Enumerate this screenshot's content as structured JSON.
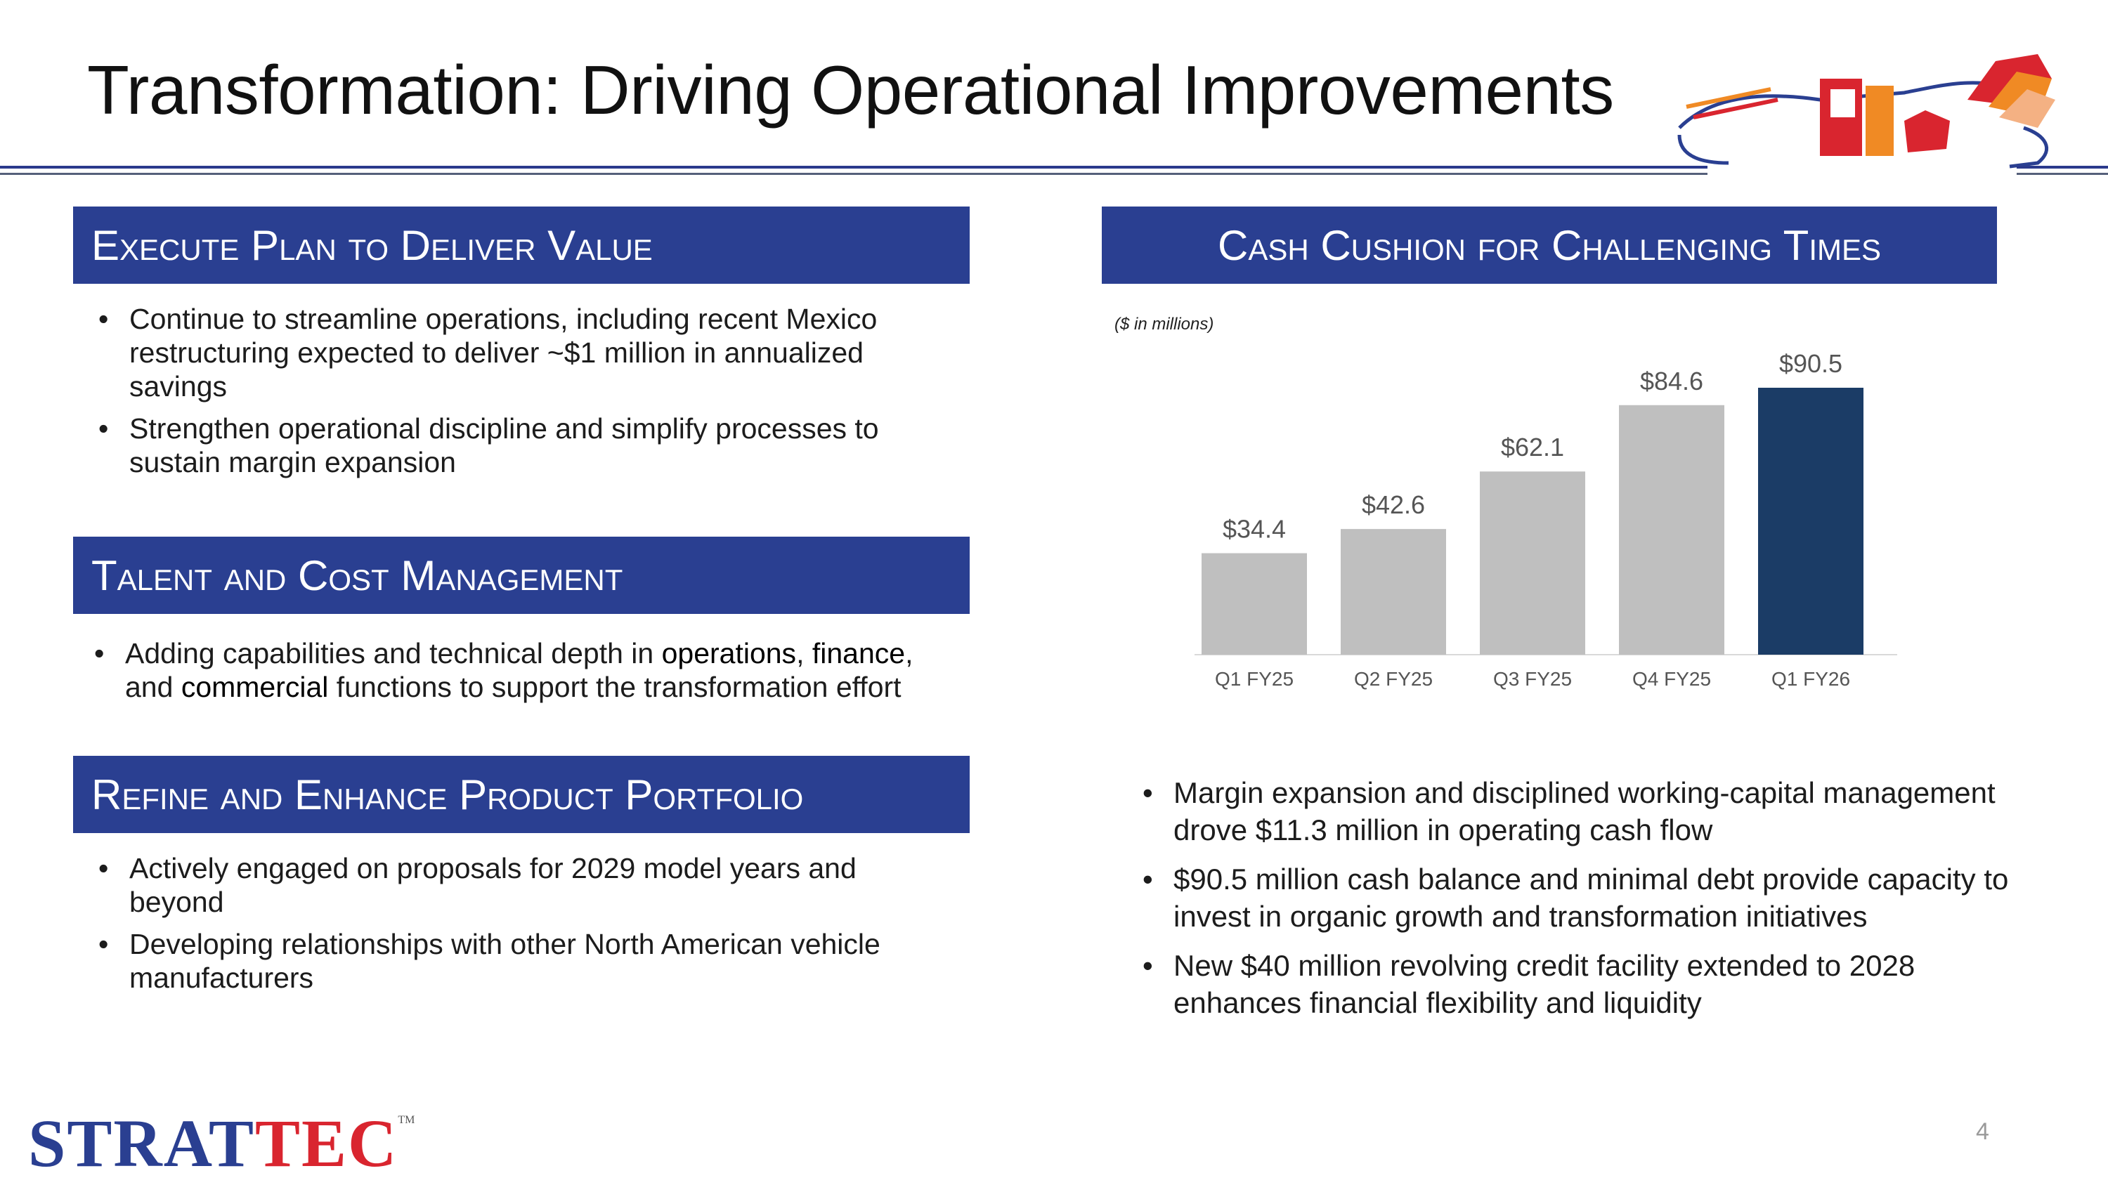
{
  "title": "Transformation: Driving Operational Improvements",
  "sections": {
    "execute": {
      "heading": "Execute Plan to Deliver Value",
      "bullets": [
        "Continue to streamline operations, including recent Mexico restructuring expected to deliver ~$1 million in annualized savings",
        "Strengthen operational discipline and simplify processes to sustain margin expansion"
      ]
    },
    "talent": {
      "heading": "Talent and Cost Management",
      "bullet": {
        "part1": "Adding capabilities and technical depth in ",
        "kw1": "operations",
        "part2": ", ",
        "kw2": "finance",
        "part3": ", and ",
        "kw3": "commercial",
        "part4": " functions to support the transformation effort"
      }
    },
    "refine": {
      "heading": "Refine and Enhance Product Portfolio",
      "bullets": [
        "Actively engaged on proposals for 2029 model years and beyond",
        "Developing relationships with other North American vehicle manufacturers"
      ]
    },
    "cash": {
      "heading": "Cash Cushion for Challenging Times",
      "note": "($ in millions)",
      "bullets": [
        "Margin expansion and disciplined working-capital management drove $11.3 million in operating cash flow",
        "$90.5 million cash balance and minimal debt provide capacity to invest in organic growth and transformation initiatives",
        "New $40 million revolving credit facility extended to 2028 enhances financial flexibility and liquidity"
      ]
    }
  },
  "chart_data": {
    "type": "bar",
    "title": "",
    "xlabel": "",
    "ylabel": "",
    "categories": [
      "Q1 FY25",
      "Q2 FY25",
      "Q3 FY25",
      "Q4 FY25",
      "Q1 FY26"
    ],
    "values": [
      34.4,
      42.6,
      62.1,
      84.6,
      90.5
    ],
    "labels": [
      "$34.4",
      "$42.6",
      "$62.1",
      "$84.6",
      "$90.5"
    ],
    "ylim": [
      0,
      90.5
    ],
    "grid": false,
    "colors": [
      "#bfbfbf",
      "#bfbfbf",
      "#bfbfbf",
      "#bfbfbf",
      "#1b3c66"
    ]
  },
  "footer": {
    "logo_main": "STRAT",
    "logo_accent": "TEC",
    "logo_tm": "TM",
    "page_number": "4"
  },
  "colors": {
    "header_bg": "#2a3f91",
    "rule": "#2b3a8c",
    "bar_gray": "#bfbfbf",
    "bar_highlight": "#1b3c66",
    "logo_blue": "#2a3f91",
    "logo_red": "#d9252f"
  },
  "icons": [
    "car-door-logo-icon"
  ]
}
